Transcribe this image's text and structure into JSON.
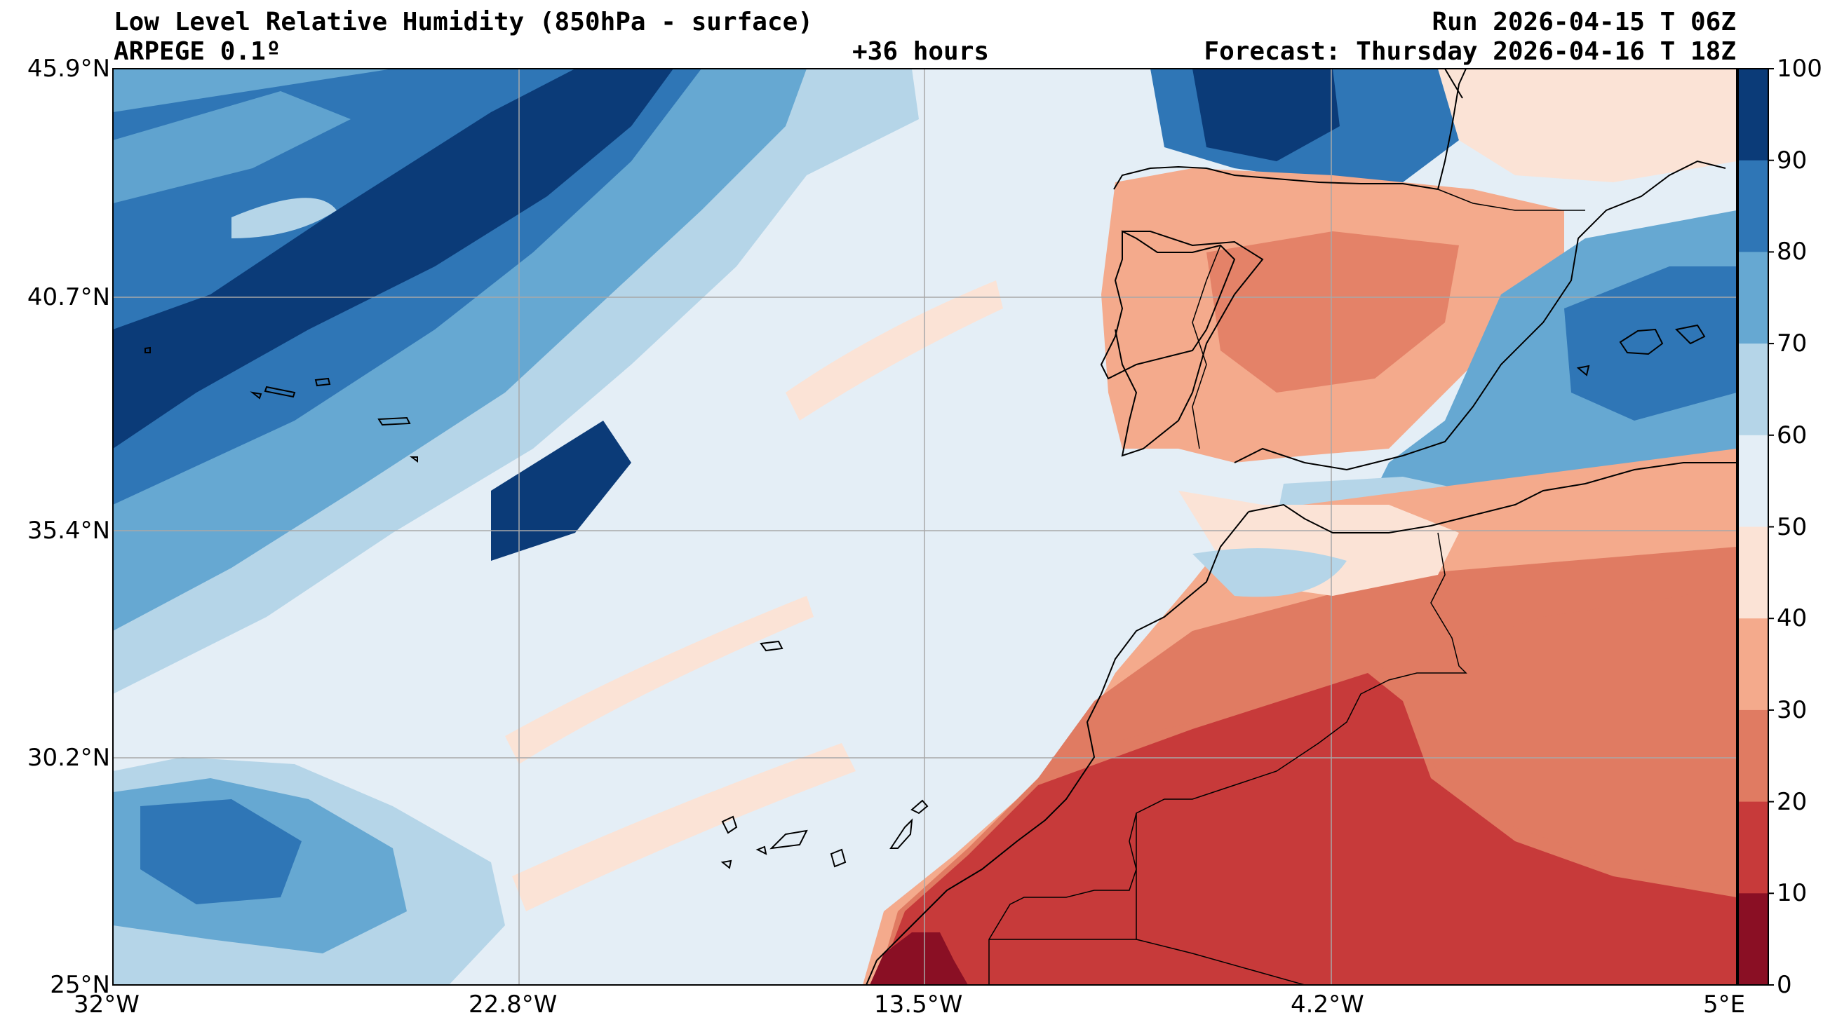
{
  "header": {
    "title": "Low Level Relative Humidity (850hPa - surface)",
    "model": "ARPEGE 0.1º",
    "lead": "+36 hours",
    "run": "Run 2026-04-15 T 06Z",
    "forecast": "Forecast: Thursday 2026-04-16 T 18Z"
  },
  "axes": {
    "lat_labels": [
      "45.9°N",
      "40.7°N",
      "35.4°N",
      "30.2°N",
      "25°N"
    ],
    "lon_labels": [
      "32°W",
      "22.8°W",
      "13.5°W",
      "4.2°W",
      "5°E"
    ]
  },
  "colorbar": {
    "ticks": [
      "100",
      "90",
      "80",
      "70",
      "60",
      "50",
      "40",
      "30",
      "20",
      "10",
      "0"
    ],
    "colors": [
      "#0b3b78",
      "#2f76b6",
      "#66a8d2",
      "#b5d5e8",
      "#e4eef6",
      "#fbe3d6",
      "#f4aa8c",
      "#e07b62",
      "#c73a3a",
      "#8a0f24"
    ]
  }
}
